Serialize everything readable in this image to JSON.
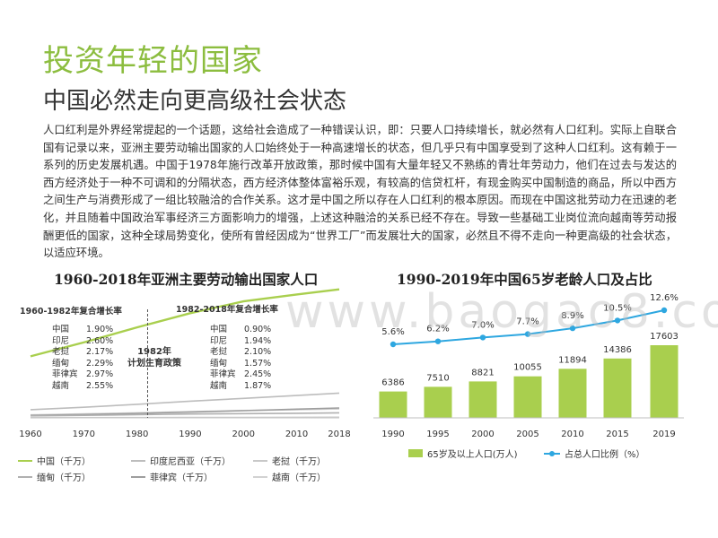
{
  "header": {
    "title": "投资年轻的国家",
    "subtitle": "中国必然走向更高级社会状态"
  },
  "body_text": "人口红利是外界经常提起的一个话题，这给社会造成了一种错误认识，即：只要人口持续增长，就必然有人口红利。实际上自联合国有记录以来，亚洲主要劳动输出国家的人口始终处于一种高速增长的状态，但几乎只有中国享受到了这种人口红利。这有赖于一系列的历史发展机遇。中国于1978年施行改革开放政策，那时候中国有大量年轻又不熟练的青壮年劳动力，他们在过去与发达的西方经济处于一种不可调和的分隔状态，西方经济体整体富裕乐观，有较高的信贷杠杆，有现金购买中国制造的商品，所以中西方之间生产与消费形成了一组比较融洽的合作关系。这才是中国之所以存在人口红利的根本原因。而现在中国这批劳动力在迅速的老化，并且随着中国政治军事经济三方面影响力的增强，上述这种融洽的关系已经不存在。导致一些基础工业岗位流向越南等劳动报酬更低的国家，这种全球局势变化，使所有曾经因成为“世界工厂”而发展壮大的国家，必然且不得不走向一种更高级的社会状态，以适应环境。",
  "watermark": "www.baogao8.com",
  "chart_data": [
    {
      "type": "line",
      "title": "1960-2018年亚洲主要劳动输出国家人口",
      "x_ticks": [
        "1960",
        "1970",
        "1980",
        "1990",
        "2000",
        "2010",
        "2018"
      ],
      "xlim": [
        1960,
        2018
      ],
      "series": [
        {
          "name": "中国（千万）",
          "color": "#a9cf4e",
          "x": [
            1960,
            1970,
            1980,
            1990,
            2000,
            2010,
            2018
          ],
          "y": [
            66.7,
            81.8,
            98.1,
            113.5,
            126.3,
            133.8,
            139.3
          ]
        },
        {
          "name": "印度尼西亚（千万）",
          "color": "#bdbdbd",
          "x": [
            1960,
            1970,
            1980,
            1990,
            2000,
            2010,
            2018
          ],
          "y": [
            8.8,
            11.5,
            14.7,
            18.1,
            21.1,
            24.2,
            26.8
          ]
        },
        {
          "name": "老挝（千万）",
          "color": "#c8c8c8",
          "x": [
            1960,
            1970,
            1980,
            1990,
            2000,
            2010,
            2018
          ],
          "y": [
            0.2,
            0.3,
            0.3,
            0.4,
            0.5,
            0.6,
            0.7
          ]
        },
        {
          "name": "缅甸（千万）",
          "color": "#b0b0b0",
          "x": [
            1960,
            1970,
            1980,
            1990,
            2000,
            2010,
            2018
          ],
          "y": [
            2.1,
            2.7,
            3.4,
            4.2,
            4.6,
            5.0,
            5.4
          ]
        },
        {
          "name": "菲律宾（千万）",
          "color": "#9e9e9e",
          "x": [
            1960,
            1970,
            1980,
            1990,
            2000,
            2010,
            2018
          ],
          "y": [
            2.6,
            3.6,
            4.8,
            6.2,
            7.8,
            9.4,
            10.7
          ]
        },
        {
          "name": "越南（千万）",
          "color": "#d2d2d2",
          "x": [
            1960,
            1970,
            1980,
            1990,
            2000,
            2010,
            2018
          ],
          "y": [
            3.2,
            4.3,
            5.4,
            6.8,
            8.0,
            8.8,
            9.6
          ]
        }
      ],
      "annotation": {
        "x": 1982,
        "text": "1982年\n计划生育政策"
      },
      "rates_before": {
        "title": "1960-1982年复合增长率",
        "items": [
          {
            "country": "中国",
            "rate": "1.90%"
          },
          {
            "country": "印尼",
            "rate": "2.60%"
          },
          {
            "country": "老挝",
            "rate": "2.17%"
          },
          {
            "country": "缅甸",
            "rate": "2.29%"
          },
          {
            "country": "菲律宾",
            "rate": "2.97%"
          },
          {
            "country": "越南",
            "rate": "2.55%"
          }
        ]
      },
      "rates_after": {
        "title": "1982-2018年复合增长率",
        "items": [
          {
            "country": "中国",
            "rate": "0.90%"
          },
          {
            "country": "印尼",
            "rate": "1.94%"
          },
          {
            "country": "老挝",
            "rate": "2.10%"
          },
          {
            "country": "缅甸",
            "rate": "1.57%"
          },
          {
            "country": "菲律宾",
            "rate": "2.45%"
          },
          {
            "country": "越南",
            "rate": "1.87%"
          }
        ]
      },
      "legend_position": "bottom"
    },
    {
      "type": "bar",
      "title": "1990-2019年中国65岁老龄人口及占比",
      "categories": [
        "1990",
        "1995",
        "2000",
        "2005",
        "2010",
        "2015",
        "2019"
      ],
      "series": [
        {
          "name": "65岁及以上人口(万人)",
          "color": "#a9cf4e",
          "values": [
            6386,
            7510,
            8821,
            10055,
            11894,
            14386,
            17603
          ],
          "labels": [
            "6386",
            "7510",
            "8821",
            "10055",
            "11894",
            "14386",
            "17603"
          ]
        },
        {
          "name": "占总人口比例（%）",
          "type": "line",
          "color": "#2ea7e0",
          "values": [
            5.6,
            6.2,
            7.0,
            7.7,
            8.9,
            10.5,
            12.6
          ],
          "labels": [
            "5.6%",
            "6.2%",
            "7.0%",
            "7.7%",
            "8.9%",
            "10.5%",
            "12.6%"
          ]
        }
      ],
      "legend_position": "bottom"
    }
  ]
}
